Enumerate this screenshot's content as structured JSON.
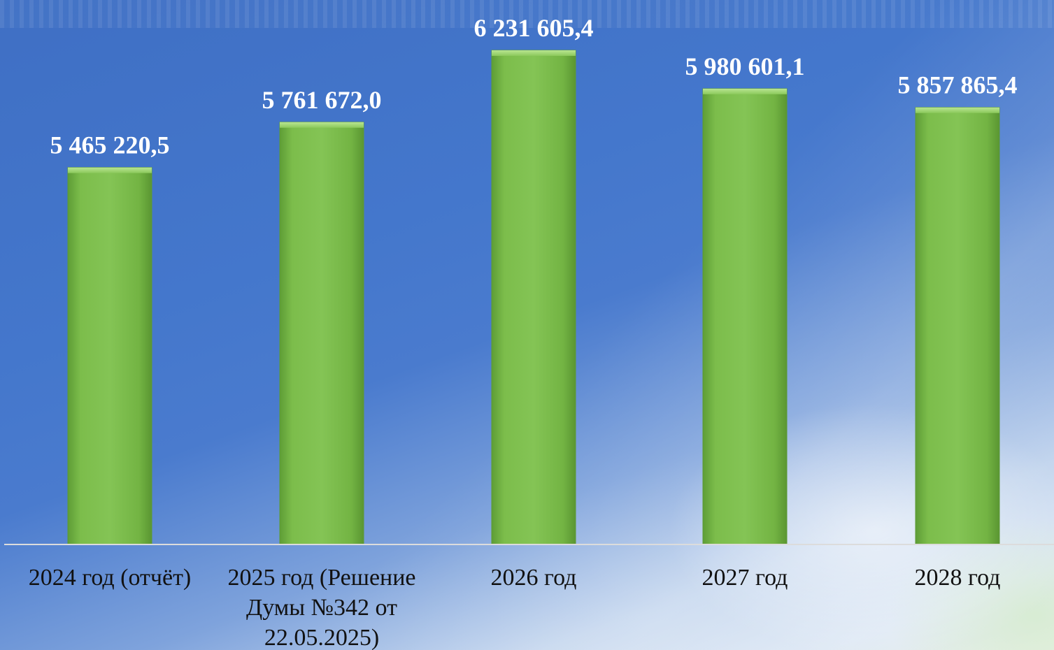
{
  "chart_data": {
    "type": "bar",
    "categories": [
      [
        "2024 год (отчёт)"
      ],
      [
        "2025 год (Решение",
        "Думы №342 от",
        "22.05.2025)"
      ],
      [
        "2026 год"
      ],
      [
        "2027 год"
      ],
      [
        "2028 год"
      ]
    ],
    "values": [
      5465220.5,
      5761672.0,
      6231605.4,
      5980601.1,
      5857865.4
    ],
    "value_labels": [
      "5 465 220,5",
      "5 761 672,0",
      "6 231 605,4",
      "5 980 601,1",
      "5 857 865,4"
    ],
    "title": "",
    "xlabel": "",
    "ylabel": "",
    "ylim": [
      3000000,
      6300000
    ],
    "grid": false,
    "legend": "none",
    "colors": {
      "bar": "#76b947",
      "bar_top": "#9fd66f",
      "bar_edge": "#5c9a36",
      "axis": "#d9d9d9",
      "value_text": "#ffffff",
      "category_text": "#111111"
    }
  }
}
